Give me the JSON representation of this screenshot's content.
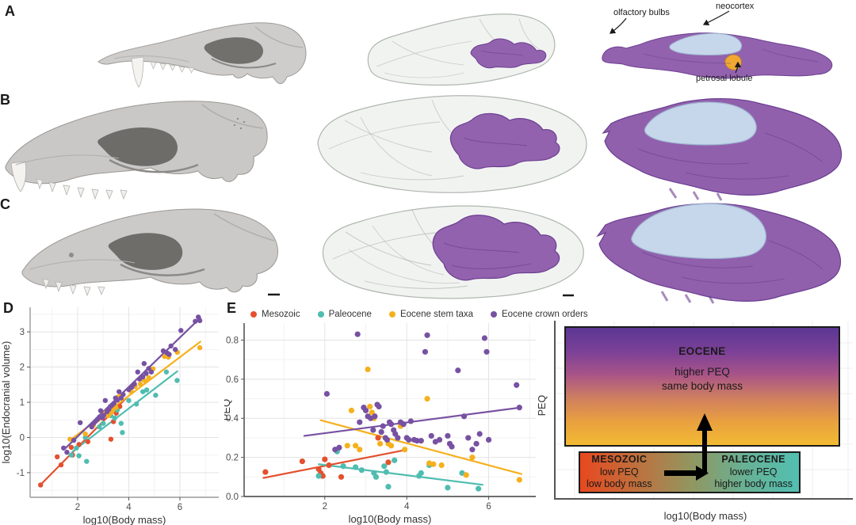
{
  "panels": {
    "a": "A",
    "b": "B",
    "c": "C",
    "d": "D",
    "e": "E"
  },
  "annotations": {
    "olfactory_bulbs": "olfactory bulbs",
    "neocortex": "neocortex",
    "petrosal_lobule": "petrosal lobule"
  },
  "colors": {
    "mesozoic": "#e4502e",
    "paleocene": "#4fbdb0",
    "eocene_stem": "#f5b01d",
    "eocene_crown": "#7751a2",
    "endocast_purple": "#9362ae",
    "neocortex_blue": "#c6d7eb",
    "petrosal_orange": "#f0a832",
    "skull_gray": "#cecdcb"
  },
  "chart_data": [
    {
      "type": "scatter",
      "panel": "D",
      "xlabel": "log10(Body mass)",
      "ylabel": "log10(Endocranial volume)",
      "xlim": [
        0.14,
        7.52
      ],
      "ylim": [
        -1.7,
        3.7
      ],
      "xticks": [
        2,
        4,
        6
      ],
      "xtick_labels": [
        "2",
        "4",
        "6"
      ],
      "yticks": [
        -1,
        0,
        1,
        2,
        3
      ],
      "ytick_labels": [
        "-1",
        "0",
        "1",
        "2",
        "3"
      ],
      "grid": true,
      "legend": false,
      "series": [
        {
          "name": "Mesozoic",
          "color": "#e4502e",
          "points": [
            [
              0.55,
              -1.35
            ],
            [
              1.2,
              -0.55
            ],
            [
              1.35,
              -0.78
            ],
            [
              1.75,
              -0.28
            ],
            [
              1.8,
              -0.5
            ],
            [
              2.05,
              -0.2
            ],
            [
              2.4,
              -0.12
            ],
            [
              3.3,
              -0.05
            ],
            [
              3.4,
              0.45
            ],
            [
              3.51,
              0.69
            ],
            [
              3.65,
              0.88
            ]
          ],
          "trend": [
            0.5,
            -1.38,
            3.9,
            1.12
          ]
        },
        {
          "name": "Paleocene",
          "color": "#4fbdb0",
          "points": [
            [
              1.75,
              -0.5
            ],
            [
              1.95,
              -0.3
            ],
            [
              2.05,
              -0.52
            ],
            [
              2.35,
              -0.68
            ],
            [
              2.3,
              0.0
            ],
            [
              2.85,
              0.3
            ],
            [
              3.0,
              0.4
            ],
            [
              3.2,
              0.75
            ],
            [
              3.3,
              0.62
            ],
            [
              3.45,
              0.55
            ],
            [
              3.55,
              0.78
            ],
            [
              3.7,
              0.4
            ],
            [
              3.75,
              0.14
            ],
            [
              4.0,
              1.05
            ],
            [
              4.3,
              0.95
            ],
            [
              4.55,
              1.3
            ],
            [
              4.7,
              1.35
            ],
            [
              5.05,
              1.2
            ],
            [
              5.47,
              1.86
            ],
            [
              5.89,
              1.62
            ]
          ],
          "trend": [
            1.8,
            -0.4,
            5.9,
            1.88
          ]
        },
        {
          "name": "Eocene stem taxa",
          "color": "#f5b01d",
          "points": [
            [
              1.7,
              -0.05
            ],
            [
              2.3,
              0.1
            ],
            [
              2.62,
              0.35
            ],
            [
              2.78,
              0.5
            ],
            [
              2.9,
              0.55
            ],
            [
              3.05,
              0.66
            ],
            [
              3.12,
              0.72
            ],
            [
              3.2,
              0.62
            ],
            [
              3.3,
              0.7
            ],
            [
              3.38,
              0.78
            ],
            [
              3.5,
              0.85
            ],
            [
              3.58,
              1.15
            ],
            [
              3.72,
              1.2
            ],
            [
              4.1,
              1.3
            ],
            [
              4.25,
              1.45
            ],
            [
              4.45,
              1.52
            ],
            [
              4.55,
              1.65
            ],
            [
              4.65,
              1.6
            ],
            [
              4.78,
              1.7
            ],
            [
              4.95,
              1.95
            ],
            [
              5.4,
              2.3
            ],
            [
              5.55,
              2.28
            ],
            [
              5.9,
              2.42
            ],
            [
              6.78,
              2.55
            ]
          ],
          "trend": [
            1.7,
            -0.08,
            6.8,
            2.72
          ]
        },
        {
          "name": "Eocene crown orders",
          "color": "#7751a2",
          "points": [
            [
              1.45,
              -0.3
            ],
            [
              1.58,
              -0.42
            ],
            [
              1.85,
              -0.08
            ],
            [
              2.1,
              0.42
            ],
            [
              2.55,
              0.3
            ],
            [
              2.62,
              0.4
            ],
            [
              2.7,
              0.46
            ],
            [
              2.78,
              0.52
            ],
            [
              2.85,
              0.58
            ],
            [
              2.9,
              0.76
            ],
            [
              2.97,
              0.56
            ],
            [
              3.02,
              0.63
            ],
            [
              3.08,
              1.05
            ],
            [
              3.15,
              0.73
            ],
            [
              3.22,
              0.8
            ],
            [
              3.28,
              0.88
            ],
            [
              3.35,
              0.92
            ],
            [
              3.42,
              0.97
            ],
            [
              3.48,
              1.12
            ],
            [
              3.55,
              1.06
            ],
            [
              3.62,
              1.3
            ],
            [
              3.7,
              1.12
            ],
            [
              3.78,
              1.22
            ],
            [
              4.0,
              1.36
            ],
            [
              4.12,
              1.43
            ],
            [
              4.22,
              1.52
            ],
            [
              4.35,
              1.86
            ],
            [
              4.42,
              1.66
            ],
            [
              4.55,
              1.72
            ],
            [
              4.6,
              2.1
            ],
            [
              4.68,
              1.82
            ],
            [
              4.78,
              1.96
            ],
            [
              4.88,
              1.86
            ],
            [
              5.35,
              2.46
            ],
            [
              5.5,
              2.4
            ],
            [
              5.58,
              2.36
            ],
            [
              5.65,
              2.6
            ],
            [
              5.82,
              2.5
            ],
            [
              6.04,
              3.04
            ],
            [
              6.6,
              3.3
            ],
            [
              6.72,
              3.42
            ],
            [
              6.78,
              3.32
            ]
          ],
          "trend": [
            1.5,
            -0.32,
            6.8,
            3.4
          ]
        }
      ]
    },
    {
      "type": "scatter",
      "panel": "E",
      "xlabel": "log10(Body mass)",
      "ylabel": "PEQ",
      "xlim": [
        0.03,
        7.15
      ],
      "ylim": [
        0,
        0.887
      ],
      "xticks": [
        2,
        4,
        6
      ],
      "xtick_labels": [
        "2",
        "4",
        "6"
      ],
      "yticks": [
        0,
        0.2,
        0.4,
        0.6,
        0.8
      ],
      "ytick_labels": [
        "0.0",
        "0.2",
        "0.4",
        "0.6",
        "0.8"
      ],
      "grid": true,
      "legend": true,
      "legend_position": "top",
      "series": [
        {
          "name": "Mesozoic",
          "color": "#e4502e",
          "points": [
            [
              0.55,
              0.125
            ],
            [
              1.45,
              0.18
            ],
            [
              1.85,
              0.14
            ],
            [
              1.9,
              0.12
            ],
            [
              1.95,
              0.105
            ],
            [
              2.0,
              0.19
            ],
            [
              2.1,
              0.16
            ],
            [
              2.4,
              0.1
            ],
            [
              3.3,
              0.3
            ],
            [
              3.55,
              0.175
            ]
          ],
          "trend": [
            0.5,
            0.095,
            3.9,
            0.235
          ]
        },
        {
          "name": "Paleocene",
          "color": "#4fbdb0",
          "points": [
            [
              1.85,
              0.105
            ],
            [
              2.3,
              0.23
            ],
            [
              2.45,
              0.155
            ],
            [
              2.75,
              0.15
            ],
            [
              2.9,
              0.135
            ],
            [
              3.2,
              0.12
            ],
            [
              3.25,
              0.1
            ],
            [
              3.45,
              0.155
            ],
            [
              3.5,
              0.125
            ],
            [
              3.55,
              0.05
            ],
            [
              3.7,
              0.185
            ],
            [
              4.3,
              0.105
            ],
            [
              4.35,
              0.12
            ],
            [
              4.55,
              0.16
            ],
            [
              5.0,
              0.045
            ],
            [
              5.35,
              0.12
            ],
            [
              5.75,
              0.04
            ]
          ],
          "trend": [
            1.85,
            0.165,
            5.85,
            0.06
          ]
        },
        {
          "name": "Eocene stem taxa",
          "color": "#f5b01d",
          "points": [
            [
              2.55,
              0.26
            ],
            [
              2.65,
              0.44
            ],
            [
              2.75,
              0.26
            ],
            [
              2.85,
              0.24
            ],
            [
              3.05,
              0.65
            ],
            [
              3.1,
              0.46
            ],
            [
              3.15,
              0.43
            ],
            [
              3.2,
              0.4
            ],
            [
              3.35,
              0.27
            ],
            [
              3.55,
              0.27
            ],
            [
              3.62,
              0.26
            ],
            [
              3.85,
              0.36
            ],
            [
              3.95,
              0.24
            ],
            [
              4.5,
              0.5
            ],
            [
              4.55,
              0.17
            ],
            [
              4.65,
              0.165
            ],
            [
              4.85,
              0.16
            ],
            [
              5.45,
              0.11
            ],
            [
              5.6,
              0.2
            ],
            [
              6.75,
              0.085
            ]
          ],
          "trend": [
            1.9,
            0.39,
            6.8,
            0.115
          ]
        },
        {
          "name": "Eocene crown orders",
          "color": "#7751a2",
          "points": [
            [
              2.05,
              0.525
            ],
            [
              2.25,
              0.24
            ],
            [
              2.35,
              0.25
            ],
            [
              2.8,
              0.83
            ],
            [
              2.85,
              0.38
            ],
            [
              2.95,
              0.455
            ],
            [
              3.0,
              0.44
            ],
            [
              3.05,
              0.41
            ],
            [
              3.12,
              0.4
            ],
            [
              3.18,
              0.34
            ],
            [
              3.22,
              0.41
            ],
            [
              3.28,
              0.47
            ],
            [
              3.32,
              0.46
            ],
            [
              3.38,
              0.33
            ],
            [
              3.42,
              0.36
            ],
            [
              3.48,
              0.3
            ],
            [
              3.52,
              0.29
            ],
            [
              3.58,
              0.38
            ],
            [
              3.62,
              0.37
            ],
            [
              3.68,
              0.34
            ],
            [
              3.72,
              0.32
            ],
            [
              3.78,
              0.3
            ],
            [
              3.85,
              0.38
            ],
            [
              3.92,
              0.37
            ],
            [
              4.0,
              0.3
            ],
            [
              4.05,
              0.29
            ],
            [
              4.1,
              0.385
            ],
            [
              4.18,
              0.29
            ],
            [
              4.25,
              0.285
            ],
            [
              4.35,
              0.285
            ],
            [
              4.45,
              0.74
            ],
            [
              4.5,
              0.825
            ],
            [
              4.6,
              0.31
            ],
            [
              4.7,
              0.28
            ],
            [
              4.8,
              0.29
            ],
            [
              5.0,
              0.31
            ],
            [
              5.05,
              0.27
            ],
            [
              5.1,
              0.255
            ],
            [
              5.25,
              0.645
            ],
            [
              5.4,
              0.41
            ],
            [
              5.5,
              0.3
            ],
            [
              5.6,
              0.24
            ],
            [
              5.7,
              0.27
            ],
            [
              5.78,
              0.32
            ],
            [
              5.9,
              0.81
            ],
            [
              5.95,
              0.74
            ],
            [
              6.0,
              0.29
            ],
            [
              6.68,
              0.57
            ],
            [
              6.75,
              0.455
            ]
          ],
          "trend": [
            1.5,
            0.31,
            6.78,
            0.455
          ]
        }
      ]
    }
  ],
  "schematic": {
    "ylabel": "PEQ",
    "xlabel": "log10(Body mass)",
    "eocene": {
      "title": "EOCENE",
      "line1": "higher PEQ",
      "line2": "same body mass",
      "gradient": [
        "#5b3794",
        "#7b4097",
        "#a85488",
        "#cf7f5f",
        "#e9a03f",
        "#f2bb33"
      ]
    },
    "mesozoic": {
      "title": "MESOZOIC",
      "line1": "low PEQ",
      "line2": "low body mass"
    },
    "paleocene": {
      "title": "PALEOCENE",
      "line1": "lower PEQ",
      "line2": "higher body mass"
    },
    "small_box_gradient": [
      "#e8481f",
      "#c06f3c",
      "#93955f",
      "#68b194",
      "#52bfb2"
    ]
  }
}
